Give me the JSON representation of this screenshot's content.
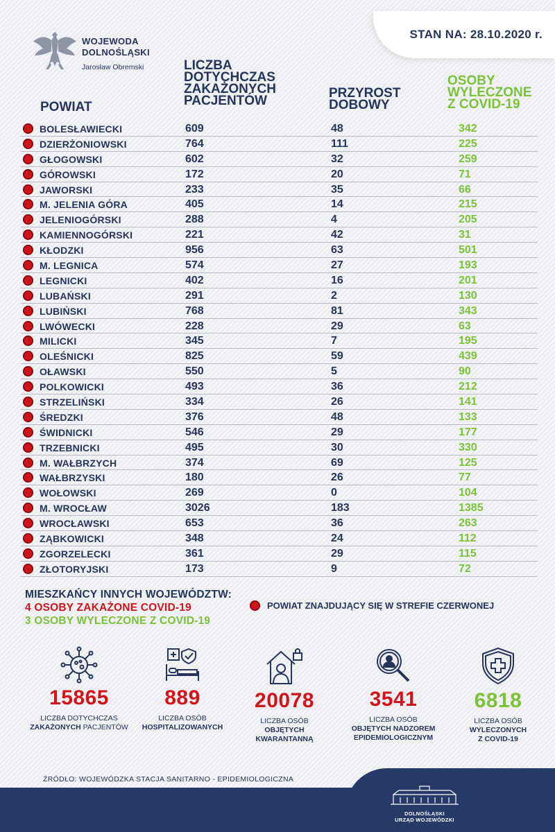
{
  "header": {
    "date_label": "STAN NA: 28.10.2020 r.",
    "org_line1": "WOJEWODA",
    "org_line2": "DOLNOŚLĄSKI",
    "org_person": "Jarosław Obremski"
  },
  "columns": {
    "powiat": "POWIAT",
    "cases": [
      "LICZBA",
      "DOTYCHCZAS",
      "ZAKAŻONYCH",
      "PACJENTÓW"
    ],
    "daily": [
      "PRZYROST",
      "DOBOWY"
    ],
    "recovered": [
      "OSOBY",
      "WYLECZONE",
      "Z COVID-19"
    ]
  },
  "rows": [
    {
      "name": "BOLESŁAWIECKI",
      "cases": "609",
      "daily": "48",
      "recovered": "342"
    },
    {
      "name": "DZIERŻONIOWSKI",
      "cases": "764",
      "daily": "111",
      "recovered": "225"
    },
    {
      "name": "GŁOGOWSKI",
      "cases": "602",
      "daily": "32",
      "recovered": "259"
    },
    {
      "name": "GÓROWSKI",
      "cases": "172",
      "daily": "20",
      "recovered": "71"
    },
    {
      "name": "JAWORSKI",
      "cases": "233",
      "daily": "35",
      "recovered": "66"
    },
    {
      "name": "M. JELENIA GÓRA",
      "cases": "405",
      "daily": "14",
      "recovered": "215"
    },
    {
      "name": "JELENIOGÓRSKI",
      "cases": "288",
      "daily": "4",
      "recovered": "205"
    },
    {
      "name": "KAMIENNOGÓRSKI",
      "cases": "221",
      "daily": "42",
      "recovered": "31"
    },
    {
      "name": "KŁODZKI",
      "cases": "956",
      "daily": "63",
      "recovered": "501"
    },
    {
      "name": "M. LEGNICA",
      "cases": "574",
      "daily": "27",
      "recovered": "193"
    },
    {
      "name": "LEGNICKI",
      "cases": "402",
      "daily": "16",
      "recovered": "201"
    },
    {
      "name": "LUBAŃSKI",
      "cases": "291",
      "daily": "2",
      "recovered": "130"
    },
    {
      "name": "LUBIŃSKI",
      "cases": "768",
      "daily": "81",
      "recovered": "343"
    },
    {
      "name": "LWÓWECKI",
      "cases": "228",
      "daily": "29",
      "recovered": "63"
    },
    {
      "name": "MILICKI",
      "cases": "345",
      "daily": "7",
      "recovered": "195"
    },
    {
      "name": "OLEŚNICKI",
      "cases": "825",
      "daily": "59",
      "recovered": "439"
    },
    {
      "name": "OŁAWSKI",
      "cases": "550",
      "daily": "5",
      "recovered": "90"
    },
    {
      "name": "POLKOWICKI",
      "cases": "493",
      "daily": "36",
      "recovered": "212"
    },
    {
      "name": "STRZELIŃSKI",
      "cases": "334",
      "daily": "26",
      "recovered": "141"
    },
    {
      "name": "ŚREDZKI",
      "cases": "376",
      "daily": "48",
      "recovered": "133"
    },
    {
      "name": "ŚWIDNICKI",
      "cases": "546",
      "daily": "29",
      "recovered": "177"
    },
    {
      "name": "TRZEBNICKI",
      "cases": "495",
      "daily": "30",
      "recovered": "330"
    },
    {
      "name": "M. WAŁBRZYCH",
      "cases": "374",
      "daily": "69",
      "recovered": "125"
    },
    {
      "name": "WAŁBRZYSKI",
      "cases": "180",
      "daily": "26",
      "recovered": "77"
    },
    {
      "name": "WOŁOWSKI",
      "cases": "269",
      "daily": "0",
      "recovered": "104"
    },
    {
      "name": "M. WROCŁAW",
      "cases": "3026",
      "daily": "183",
      "recovered": "1385"
    },
    {
      "name": "WROCŁAWSKI",
      "cases": "653",
      "daily": "36",
      "recovered": "263"
    },
    {
      "name": "ZĄBKOWICKI",
      "cases": "348",
      "daily": "24",
      "recovered": "112"
    },
    {
      "name": "ZGORZELECKI",
      "cases": "361",
      "daily": "29",
      "recovered": "115"
    },
    {
      "name": "ZŁOTORYJSKI",
      "cases": "173",
      "daily": "9",
      "recovered": "72"
    }
  ],
  "other_regions": {
    "title": "MIESZKAŃCY INNYCH WOJEWÓDZTW:",
    "infected": "4 OSOBY ZAKAŻONE COVID-19",
    "recovered": "3 OSOBY WYLECZONE Z COVID-19"
  },
  "legend": {
    "red_zone": "POWIAT ZNAJDUJĄCY SIĘ W STREFIE CZERWONEJ"
  },
  "stats": [
    {
      "icon": "virus-icon",
      "value": "15865",
      "line1": "LICZBA DOTYCHCZAS",
      "line2": "ZAKAŻONYCH PACJENTÓW",
      "line3": ""
    },
    {
      "icon": "hospital-bed-icon",
      "value": "889",
      "line1": "LICZBA OSÓB",
      "line2": "HOSPITALIZOWANYCH",
      "line3": ""
    },
    {
      "icon": "quarantine-house-icon",
      "value": "20078",
      "line1": "LICZBA OSÓB",
      "line2": "OBJĘTYCH",
      "line3": "KWARANTANNĄ"
    },
    {
      "icon": "magnifier-person-icon",
      "value": "3541",
      "line1": "LICZBA OSÓB",
      "line2": "OBJĘTYCH NADZOREM",
      "line3": "EPIDEMIOLOGICZNYM"
    },
    {
      "icon": "shield-cross-icon",
      "value": "6818",
      "line1": "LICZBA OSÓB",
      "line2": "WYLECZONYCH",
      "line3": "Z COVID-19"
    }
  ],
  "source": "ŹRÓDŁO: WOJEWÓDZKA STACJA SANITARNO - EPIDEMIOLOGICZNA",
  "footer": {
    "line1": "DOLNOŚLĄSKI",
    "line2": "URZĄD WOJEWÓDZKI"
  },
  "colors": {
    "navy": "#25345a",
    "red": "#d0141c",
    "green": "#7bc13a",
    "footer": "#253a66"
  }
}
